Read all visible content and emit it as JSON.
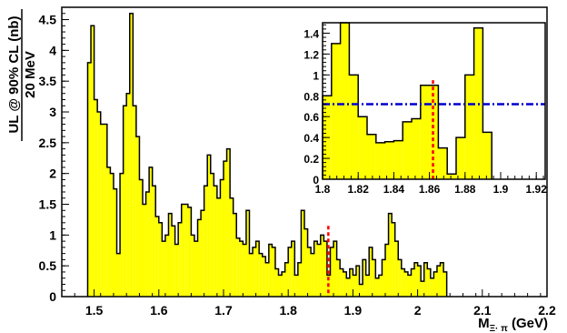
{
  "chart_data": [
    {
      "type": "histogram",
      "role": "main",
      "ylabel_numerator": "UL @ 90% CL (nb)",
      "ylabel_denominator": "20 MeV",
      "xlabel_main": "M",
      "xlabel_sub": "Ξ· π",
      "xlabel_unit": " (GeV)",
      "xlim": [
        1.45,
        2.2
      ],
      "ylim": [
        0,
        4.7
      ],
      "xticks": [
        1.5,
        1.6,
        1.7,
        1.8,
        1.9,
        2.0,
        2.1,
        2.2
      ],
      "xtick_labels": [
        "1.5",
        "1.6",
        "1.7",
        "1.8",
        "1.9",
        "2",
        "2.1",
        "2.2"
      ],
      "yticks": [
        0,
        0.5,
        1,
        1.5,
        2,
        2.5,
        3,
        3.5,
        4,
        4.5
      ],
      "ytick_labels": [
        "0",
        "0.5",
        "1",
        "1.5",
        "2",
        "2.5",
        "3",
        "3.5",
        "4",
        "4.5"
      ],
      "fill_color": "#ffff00",
      "bin_width": 0.005,
      "x_start": 1.49,
      "values": [
        3.8,
        4.4,
        3.2,
        3.0,
        2.8,
        2.8,
        2.1,
        2.0,
        1.75,
        0.7,
        2.0,
        3.1,
        3.3,
        4.6,
        3.1,
        2.6,
        1.9,
        1.5,
        1.7,
        2.1,
        1.8,
        1.3,
        1.2,
        0.9,
        1.0,
        1.35,
        1.15,
        0.85,
        1.2,
        1.5,
        1.5,
        1.45,
        1.0,
        0.9,
        1.25,
        1.4,
        1.8,
        2.3,
        2.0,
        1.8,
        1.6,
        1.9,
        2.2,
        2.4,
        1.6,
        1.35,
        0.95,
        0.9,
        0.85,
        1.4,
        0.7,
        0.8,
        0.9,
        0.7,
        0.65,
        0.55,
        0.85,
        0.8,
        0.45,
        0.35,
        0.4,
        0.55,
        0.8,
        0.9,
        0.35,
        0.55,
        1.4,
        1.1,
        0.8,
        0.7,
        0.9,
        0.85,
        1.0,
        0.9,
        0.35,
        0.8,
        0.9,
        0.6,
        0.45,
        0.4,
        0.3,
        0.45,
        0.35,
        0.5,
        0.2,
        0.6,
        0.35,
        0.8,
        0.6,
        0.3,
        0.35,
        0.6,
        0.85,
        1.35,
        1.2,
        0.9,
        0.6,
        0.45,
        0.4,
        0.35,
        0.45,
        0.55,
        0.5,
        0.25,
        0.55,
        0.45,
        0.3,
        0.4,
        0.5,
        0.55,
        0.4
      ],
      "marker_x": 1.862,
      "marker_color": "#ff0000"
    },
    {
      "type": "histogram",
      "role": "inset",
      "xlim": [
        1.8,
        1.925
      ],
      "ylim": [
        0,
        1.5
      ],
      "xticks": [
        1.8,
        1.82,
        1.84,
        1.86,
        1.88,
        1.9,
        1.92
      ],
      "xtick_labels": [
        "1.8",
        "1.82",
        "1.84",
        "1.86",
        "1.88",
        "1.9",
        "1.92"
      ],
      "yticks": [
        0,
        0.2,
        0.4,
        0.6,
        0.8,
        1.0,
        1.2,
        1.4
      ],
      "ytick_labels": [
        "0",
        "0.2",
        "0.4",
        "0.6",
        "0.8",
        "1",
        "1.2",
        "1.4"
      ],
      "fill_color": "#ffff00",
      "x_start": 1.8,
      "bin_width": 0.005,
      "values": [
        0.8,
        1.3,
        1.5,
        1.0,
        0.6,
        0.43,
        0.35,
        0.36,
        0.37,
        0.55,
        0.58,
        0.9,
        0.9,
        0.3,
        0.05,
        0.4,
        1.0,
        1.45,
        0.45
      ],
      "marker_x": 1.862,
      "marker_color": "#ff0000",
      "reference_level": 0.72,
      "reference_color": "#0000cc"
    }
  ]
}
